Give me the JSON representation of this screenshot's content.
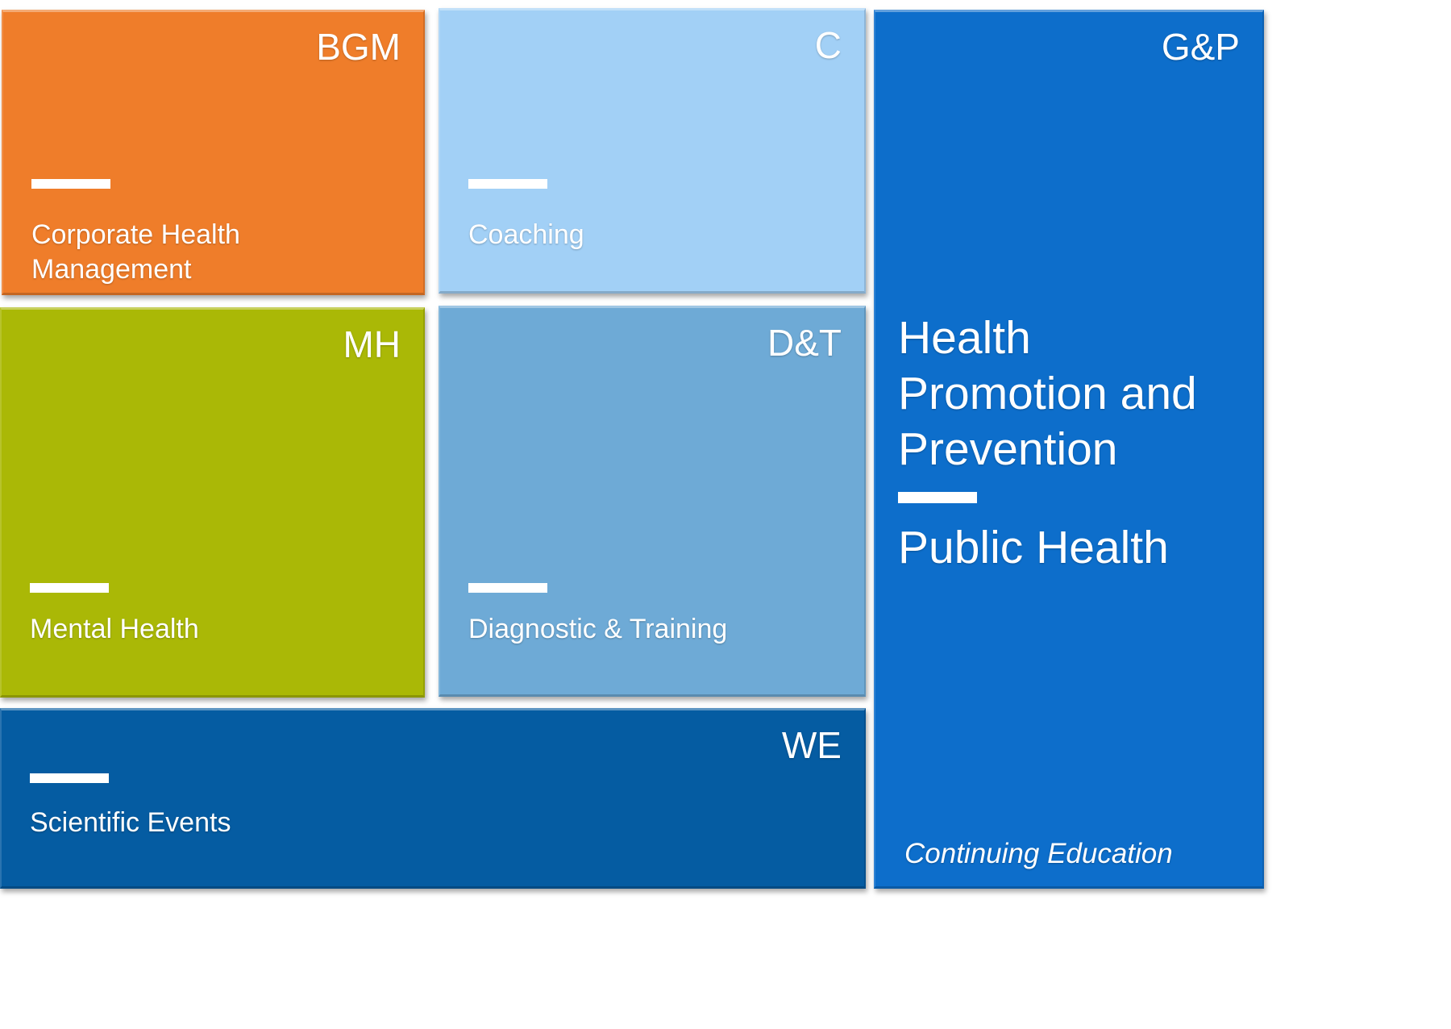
{
  "tiles": {
    "bgm": {
      "abbreviation": "BGM",
      "label_line1": "Corporate Health",
      "label_line2": "Management",
      "color": "#ef7d2a"
    },
    "c": {
      "abbreviation": "C",
      "label": "Coaching",
      "color": "#a2d0f6"
    },
    "mh": {
      "abbreviation": "MH",
      "label": "Mental Health",
      "color": "#aab806"
    },
    "dt": {
      "abbreviation": "D&T",
      "label": "Diagnostic & Training",
      "color": "#6eaad6"
    },
    "we": {
      "abbreviation": "WE",
      "label": "Scientific Events",
      "color": "#055ca2"
    },
    "gp": {
      "abbreviation": "G&P",
      "title_line1": "Health",
      "title_line2": "Promotion and",
      "title_line3": "Prevention",
      "subtitle": "Public Health",
      "footer": "Continuing Education",
      "color": "#0d6ecb"
    }
  }
}
